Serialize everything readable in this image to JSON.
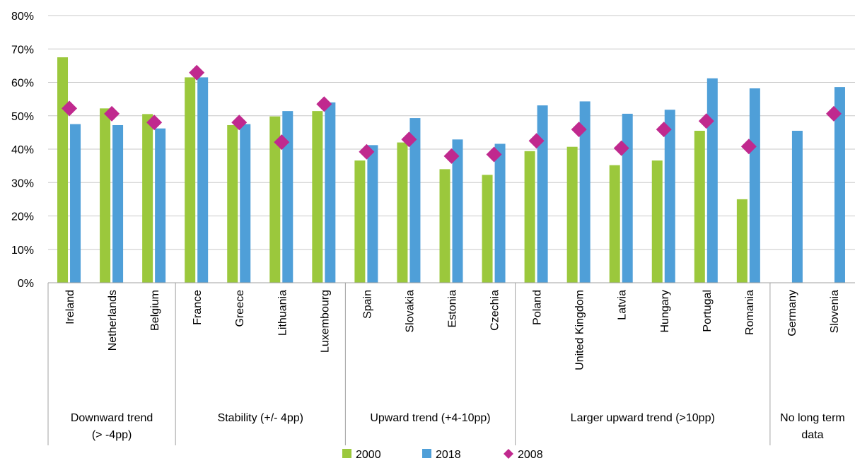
{
  "chart_data": {
    "type": "bar",
    "ylim": [
      0,
      80
    ],
    "yticks": [
      "0%",
      "10%",
      "20%",
      "30%",
      "40%",
      "50%",
      "60%",
      "70%",
      "80%"
    ],
    "grid": true,
    "legend_position": "bottom",
    "categories": [
      "Ireland",
      "Netherlands",
      "Belgium",
      "France",
      "Greece",
      "Lithuania",
      "Luxembourg",
      "Spain",
      "Slovakia",
      "Estonia",
      "Czechia",
      "Poland",
      "United Kingdom",
      "Latvia",
      "Hungary",
      "Portugal",
      "Romania",
      "Germany",
      "Slovenia"
    ],
    "groups": [
      {
        "label_lines": [
          "Downward trend",
          "(> -4pp)"
        ],
        "start": 0,
        "end": 2
      },
      {
        "label_lines": [
          "Stability (+/- 4pp)"
        ],
        "start": 3,
        "end": 6
      },
      {
        "label_lines": [
          "Upward trend (+4-10pp)"
        ],
        "start": 7,
        "end": 10
      },
      {
        "label_lines": [
          "Larger upward trend (>10pp)"
        ],
        "start": 11,
        "end": 16
      },
      {
        "label_lines": [
          "No long term",
          "data"
        ],
        "start": 17,
        "end": 18
      }
    ],
    "series": [
      {
        "name": "2000",
        "kind": "bar",
        "color": "#9bc83c",
        "values": [
          67.5,
          52.2,
          50.5,
          61.5,
          47.2,
          49.8,
          51.4,
          36.6,
          42.0,
          34.0,
          32.3,
          39.4,
          40.7,
          35.2,
          36.6,
          45.5,
          25.0,
          null,
          null
        ]
      },
      {
        "name": "2018",
        "kind": "bar",
        "color": "#4f9fd8",
        "values": [
          47.5,
          47.2,
          46.2,
          61.5,
          47.5,
          51.4,
          54.0,
          41.2,
          49.3,
          42.9,
          41.6,
          53.1,
          54.3,
          50.6,
          51.8,
          61.2,
          58.2,
          45.5,
          58.6
        ]
      },
      {
        "name": "2008",
        "kind": "marker",
        "color": "#c0298e",
        "values": [
          52.2,
          50.6,
          48.0,
          62.9,
          48.0,
          42.1,
          53.5,
          39.2,
          42.9,
          37.9,
          38.4,
          42.5,
          45.9,
          40.3,
          45.9,
          48.4,
          40.8,
          null,
          50.6
        ]
      }
    ]
  }
}
